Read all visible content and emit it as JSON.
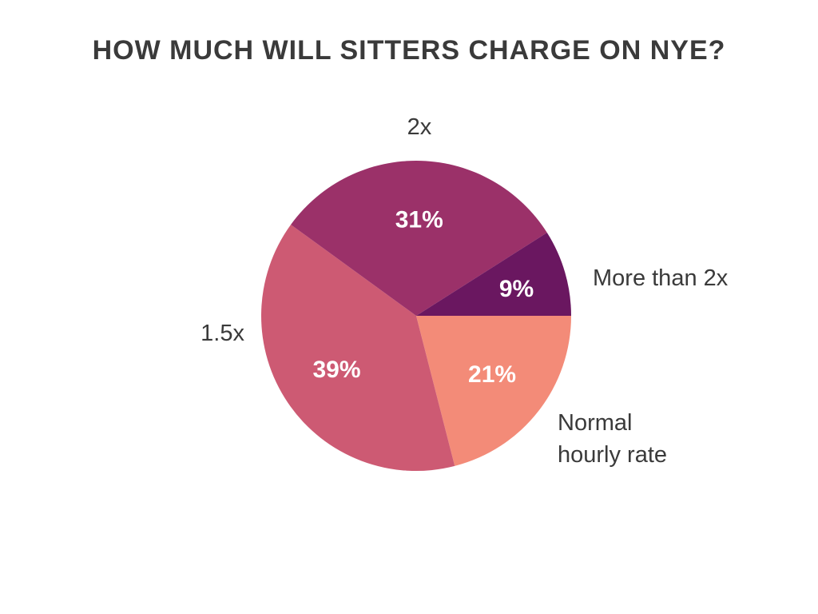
{
  "chart_data": {
    "type": "pie",
    "title": "HOW MUCH WILL SITTERS CHARGE ON NYE?",
    "start_angle_deg": 0,
    "direction": "clockwise",
    "slices": [
      {
        "label": [
          "Normal",
          "hourly rate"
        ],
        "value": 21,
        "value_label": "21%",
        "color": "#f38b78"
      },
      {
        "label": [
          "1.5x"
        ],
        "value": 39,
        "value_label": "39%",
        "color": "#cd5a73"
      },
      {
        "label": [
          "2x"
        ],
        "value": 31,
        "value_label": "31%",
        "color": "#9b3169"
      },
      {
        "label": [
          "More than 2x"
        ],
        "value": 9,
        "value_label": "9%",
        "color": "#6a1760"
      }
    ]
  }
}
